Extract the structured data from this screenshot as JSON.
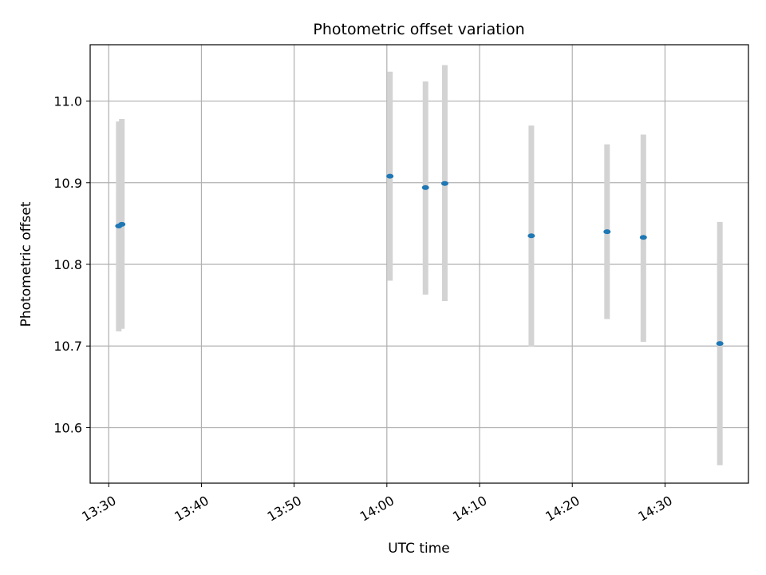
{
  "chart_data": {
    "type": "scatter",
    "title": "Photometric offset variation",
    "xlabel": "UTC time",
    "ylabel": "Photometric offset",
    "x_axis_type": "time",
    "xlim": [
      "13:28",
      "14:39"
    ],
    "ylim": [
      10.532,
      11.069
    ],
    "x_ticks": [
      "13:30",
      "13:40",
      "13:50",
      "14:00",
      "14:10",
      "14:20",
      "14:30"
    ],
    "y_ticks": [
      10.6,
      10.7,
      10.8,
      10.9,
      11.0
    ],
    "y_tick_labels": [
      "10.6",
      "10.7",
      "10.8",
      "10.9",
      "11.0"
    ],
    "grid": true,
    "points": [
      {
        "x": "13:31:05",
        "y": 10.847,
        "err_low": 10.718,
        "err_high": 10.975
      },
      {
        "x": "13:31:25",
        "y": 10.849,
        "err_low": 10.721,
        "err_high": 10.978
      },
      {
        "x": "14:00:20",
        "y": 10.908,
        "err_low": 10.78,
        "err_high": 11.036
      },
      {
        "x": "14:04:10",
        "y": 10.894,
        "err_low": 10.763,
        "err_high": 11.024
      },
      {
        "x": "14:06:15",
        "y": 10.899,
        "err_low": 10.755,
        "err_high": 11.044
      },
      {
        "x": "14:15:35",
        "y": 10.835,
        "err_low": 10.699,
        "err_high": 10.97
      },
      {
        "x": "14:23:45",
        "y": 10.84,
        "err_low": 10.733,
        "err_high": 10.947
      },
      {
        "x": "14:27:40",
        "y": 10.833,
        "err_low": 10.705,
        "err_high": 10.959
      },
      {
        "x": "14:35:55",
        "y": 10.703,
        "err_low": 10.554,
        "err_high": 10.852
      }
    ],
    "colors": {
      "marker": "#1f77b4",
      "errorbar": "#d3d3d3",
      "grid": "#b0b0b0"
    }
  }
}
